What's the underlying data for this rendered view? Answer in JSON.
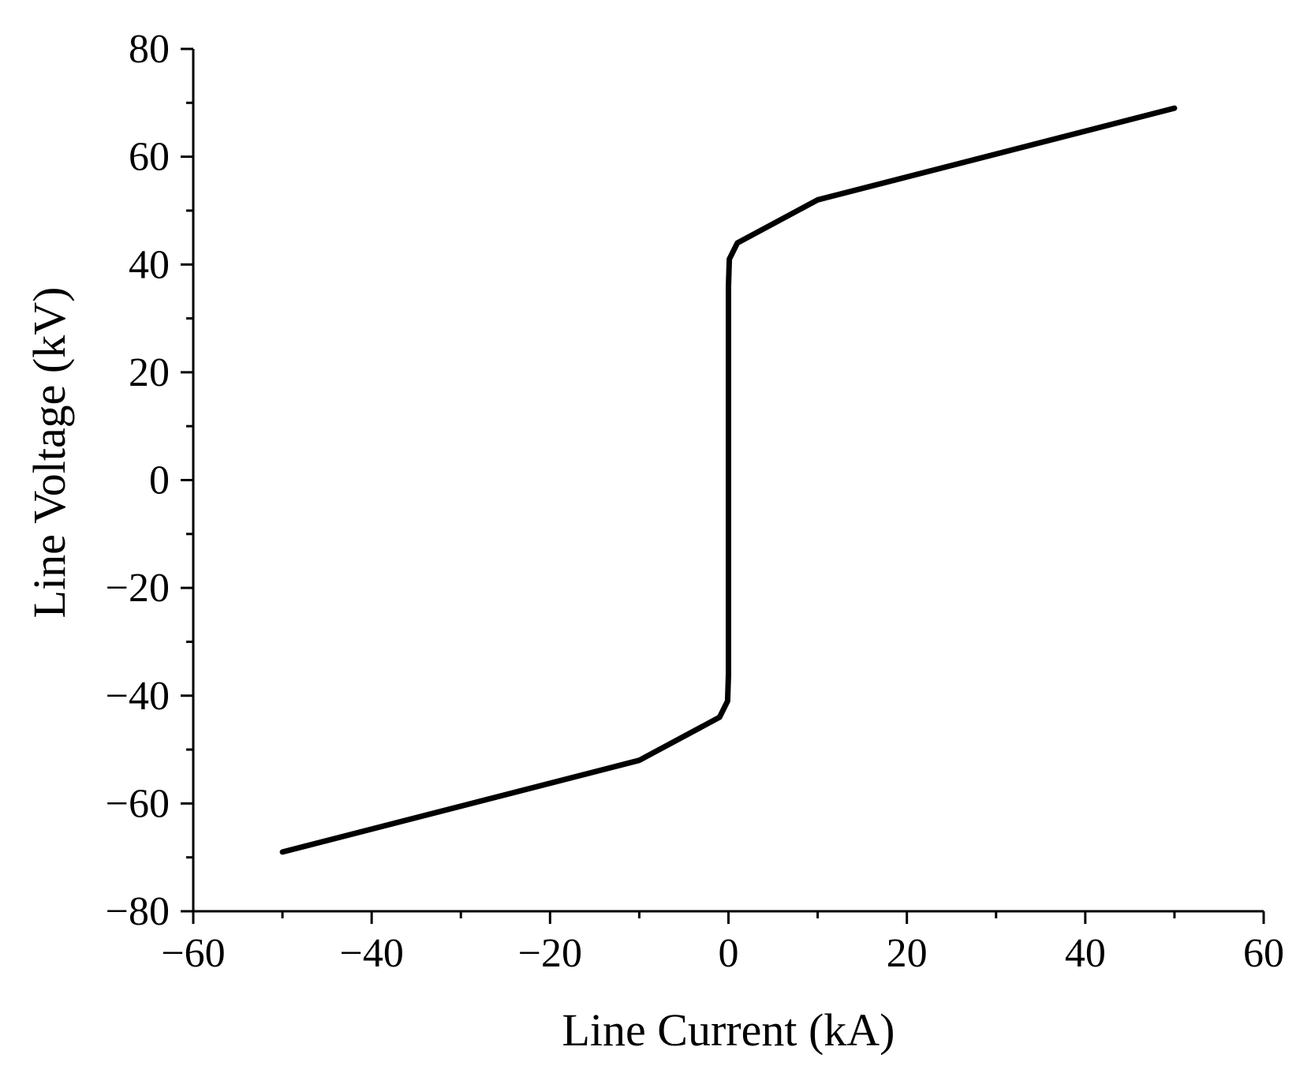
{
  "chart_data": {
    "type": "line",
    "title": "",
    "xlabel": "Line Current (kA)",
    "ylabel": "Line Voltage (kV)",
    "xlim": [
      -60,
      60
    ],
    "ylim": [
      -80,
      80
    ],
    "x_ticks": [
      -60,
      -40,
      -20,
      0,
      20,
      40,
      60
    ],
    "x_tick_labels": [
      "−60",
      "−40",
      "−20",
      "0",
      "20",
      "40",
      "60"
    ],
    "y_ticks": [
      -80,
      -60,
      -40,
      -20,
      0,
      20,
      40,
      60,
      80
    ],
    "y_tick_labels": [
      "−80",
      "−60",
      "−40",
      "−20",
      "0",
      "20",
      "40",
      "60",
      "80"
    ],
    "grid": false,
    "legend": "none",
    "series": [
      {
        "color": "#000000",
        "x": [
          -50,
          -10,
          -1,
          -0.1,
          0,
          0,
          0.1,
          1,
          10,
          50
        ],
        "y": [
          -69,
          -52,
          -44,
          -41,
          -36,
          36,
          41,
          44,
          52,
          69
        ]
      }
    ]
  }
}
